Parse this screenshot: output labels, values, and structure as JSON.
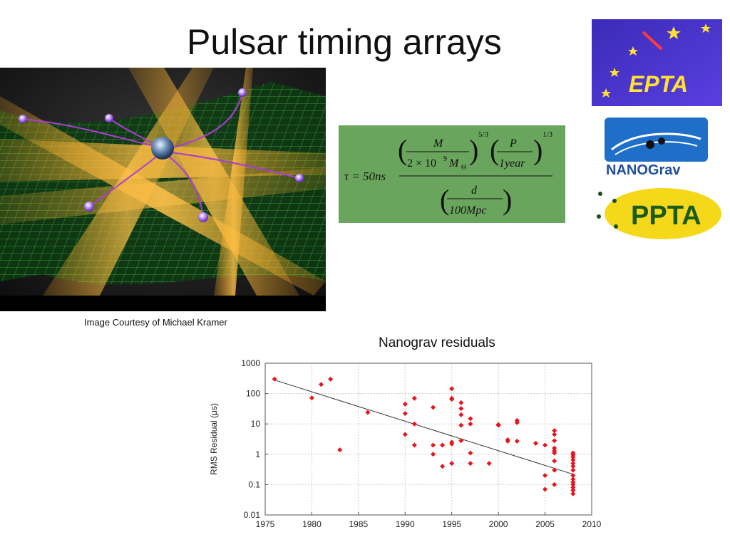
{
  "slide": {
    "title": "Pulsar timing arrays",
    "caption": "Image Courtesy of Michael Kramer"
  },
  "formula": {
    "lhs": "τ = 50ns",
    "mass_num": "M",
    "mass_den_a": "2 × 10",
    "mass_den_exp": "9",
    "mass_den_b": "M",
    "mass_den_sub": "Θ",
    "mass_power": "5/3",
    "period_num": "P",
    "period_den": "1year",
    "period_power": "1/3",
    "dist_num": "d",
    "dist_den": "100Mpc",
    "background_color": "#6aa55d"
  },
  "logos": {
    "epta": "EPTA",
    "nanograv": "NANOGrav",
    "ppta": "PPTA"
  },
  "chart_title": "Nanograv residuals",
  "chart_data": {
    "type": "scatter",
    "title": "Nanograv residuals",
    "xlabel": "",
    "ylabel": "RMS Residual (μs)",
    "xlim": [
      1975,
      2010
    ],
    "ylim": [
      0.01,
      1000
    ],
    "yscale": "log",
    "grid": true,
    "x_ticks": [
      1975,
      1980,
      1985,
      1990,
      1995,
      2000,
      2005,
      2010
    ],
    "y_ticks": [
      0.01,
      0.1,
      1,
      10,
      100,
      1000
    ],
    "y_tick_labels": [
      "0.01",
      "0.1",
      "1",
      "10",
      "100",
      "1000"
    ],
    "marker_color": "#e8141c",
    "trendline": {
      "x": [
        1976,
        2008
      ],
      "y": [
        280,
        0.22
      ],
      "color": "#333333"
    },
    "points": [
      [
        1976,
        300
      ],
      [
        1980,
        72
      ],
      [
        1981,
        200
      ],
      [
        1982,
        300
      ],
      [
        1983,
        1.4
      ],
      [
        1986,
        24
      ],
      [
        1990,
        45
      ],
      [
        1990,
        22
      ],
      [
        1990,
        4.5
      ],
      [
        1991,
        70
      ],
      [
        1991,
        10
      ],
      [
        1991,
        2
      ],
      [
        1993,
        35
      ],
      [
        1993,
        2
      ],
      [
        1993,
        1
      ],
      [
        1994,
        2
      ],
      [
        1994,
        0.4
      ],
      [
        1995,
        145
      ],
      [
        1995,
        70
      ],
      [
        1995,
        65
      ],
      [
        1995,
        2.5
      ],
      [
        1995,
        2.2
      ],
      [
        1995,
        0.5
      ],
      [
        1996,
        50
      ],
      [
        1996,
        32
      ],
      [
        1996,
        20
      ],
      [
        1996,
        9
      ],
      [
        1996,
        2.8
      ],
      [
        1997,
        15
      ],
      [
        1997,
        10
      ],
      [
        1997,
        1.1
      ],
      [
        1997,
        0.5
      ],
      [
        1999,
        0.5
      ],
      [
        2000,
        9.5
      ],
      [
        2000,
        9
      ],
      [
        2001,
        3
      ],
      [
        2001,
        2.7
      ],
      [
        2002,
        13
      ],
      [
        2002,
        11
      ],
      [
        2002,
        2.7
      ],
      [
        2004,
        2.3
      ],
      [
        2005,
        2
      ],
      [
        2005,
        0.2
      ],
      [
        2005,
        0.07
      ],
      [
        2006,
        6
      ],
      [
        2006,
        4.5
      ],
      [
        2006,
        2.8
      ],
      [
        2006,
        1.6
      ],
      [
        2006,
        1.3
      ],
      [
        2006,
        1.1
      ],
      [
        2006,
        0.6
      ],
      [
        2006,
        0.3
      ],
      [
        2006,
        0.1
      ],
      [
        2008,
        1.1
      ],
      [
        2008,
        0.95
      ],
      [
        2008,
        0.8
      ],
      [
        2008,
        0.65
      ],
      [
        2008,
        0.5
      ],
      [
        2008,
        0.4
      ],
      [
        2008,
        0.3
      ],
      [
        2008,
        0.2
      ],
      [
        2008,
        0.15
      ],
      [
        2008,
        0.12
      ],
      [
        2008,
        0.1
      ],
      [
        2008,
        0.08
      ],
      [
        2008,
        0.065
      ],
      [
        2008,
        0.05
      ]
    ]
  }
}
